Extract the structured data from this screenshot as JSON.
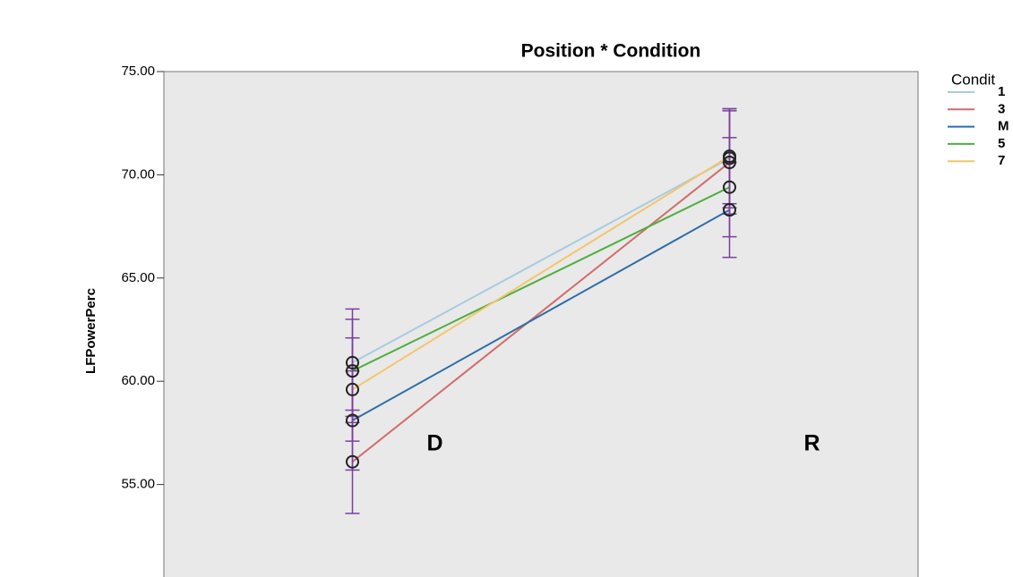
{
  "chart_data": {
    "type": "line",
    "title": "Position * Condition",
    "y_label": "LFPowerPerc",
    "legend_title": "Condit",
    "categories": [
      "D",
      "R"
    ],
    "ylim": [
      50,
      75
    ],
    "yticks": [
      {
        "value": 55,
        "label": "55.00"
      },
      {
        "value": 60,
        "label": "60.00"
      },
      {
        "value": 65,
        "label": "65.00"
      },
      {
        "value": 70,
        "label": "70.00"
      },
      {
        "value": 75,
        "label": "75.00"
      }
    ],
    "legend_position": "right",
    "series": [
      {
        "name": "1",
        "color": "#a9cbe0",
        "values": [
          60.9,
          70.8
        ],
        "errors": [
          2.6,
          2.4
        ]
      },
      {
        "name": "3",
        "color": "#d36b6b",
        "values": [
          56.1,
          70.6
        ],
        "errors": [
          2.5,
          2.5
        ]
      },
      {
        "name": "M",
        "color": "#2f6fa8",
        "values": [
          58.1,
          68.3
        ],
        "errors": [
          2.4,
          2.3
        ]
      },
      {
        "name": "5",
        "color": "#4daf3e",
        "values": [
          60.5,
          69.4
        ],
        "errors": [
          2.5,
          2.4
        ]
      },
      {
        "name": "7",
        "color": "#f4c56c",
        "values": [
          59.6,
          70.9
        ],
        "errors": [
          2.5,
          2.3
        ]
      }
    ],
    "error_bar_color": "#7a3f9e"
  }
}
